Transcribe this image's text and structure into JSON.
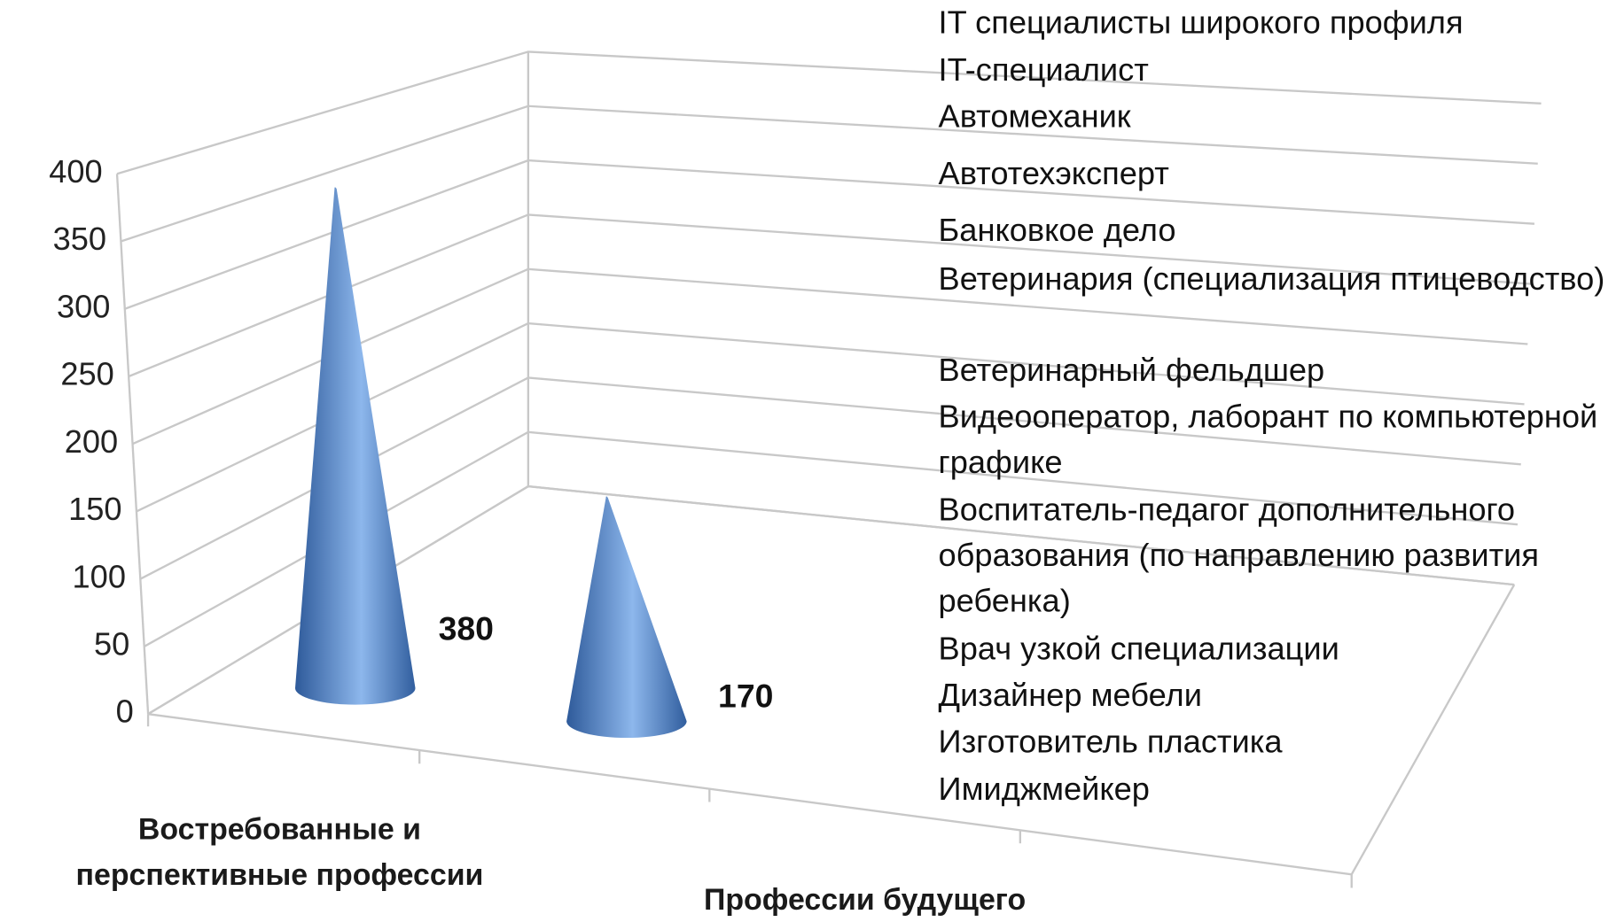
{
  "chart_data": {
    "type": "cone",
    "categories": [
      "Востребованные и перспективные профессии",
      "Профессии будущего"
    ],
    "values": [
      380,
      170
    ],
    "ylim": [
      0,
      400
    ],
    "yticks": [
      0,
      50,
      100,
      150,
      200,
      250,
      300,
      350,
      400
    ],
    "grid": true,
    "color": "#5b8ccf",
    "legend_items": [
      "IT специалисты широкого профиля",
      "IT-специалист",
      "Автомеханик",
      "Автотехэксперт",
      "Банковкое дело",
      "Ветеринария (специализация птицеводство)",
      "Ветеринарный фельдшер",
      "Видеооператор, лаборант по компьютерной графике",
      "Воспитатель-педагог дополнительного образования (по направлению развития ребенка)",
      "Врач узкой специализации",
      "Дизайнер мебели",
      "Изготовитель пластика",
      "Имиджмейкер"
    ]
  }
}
